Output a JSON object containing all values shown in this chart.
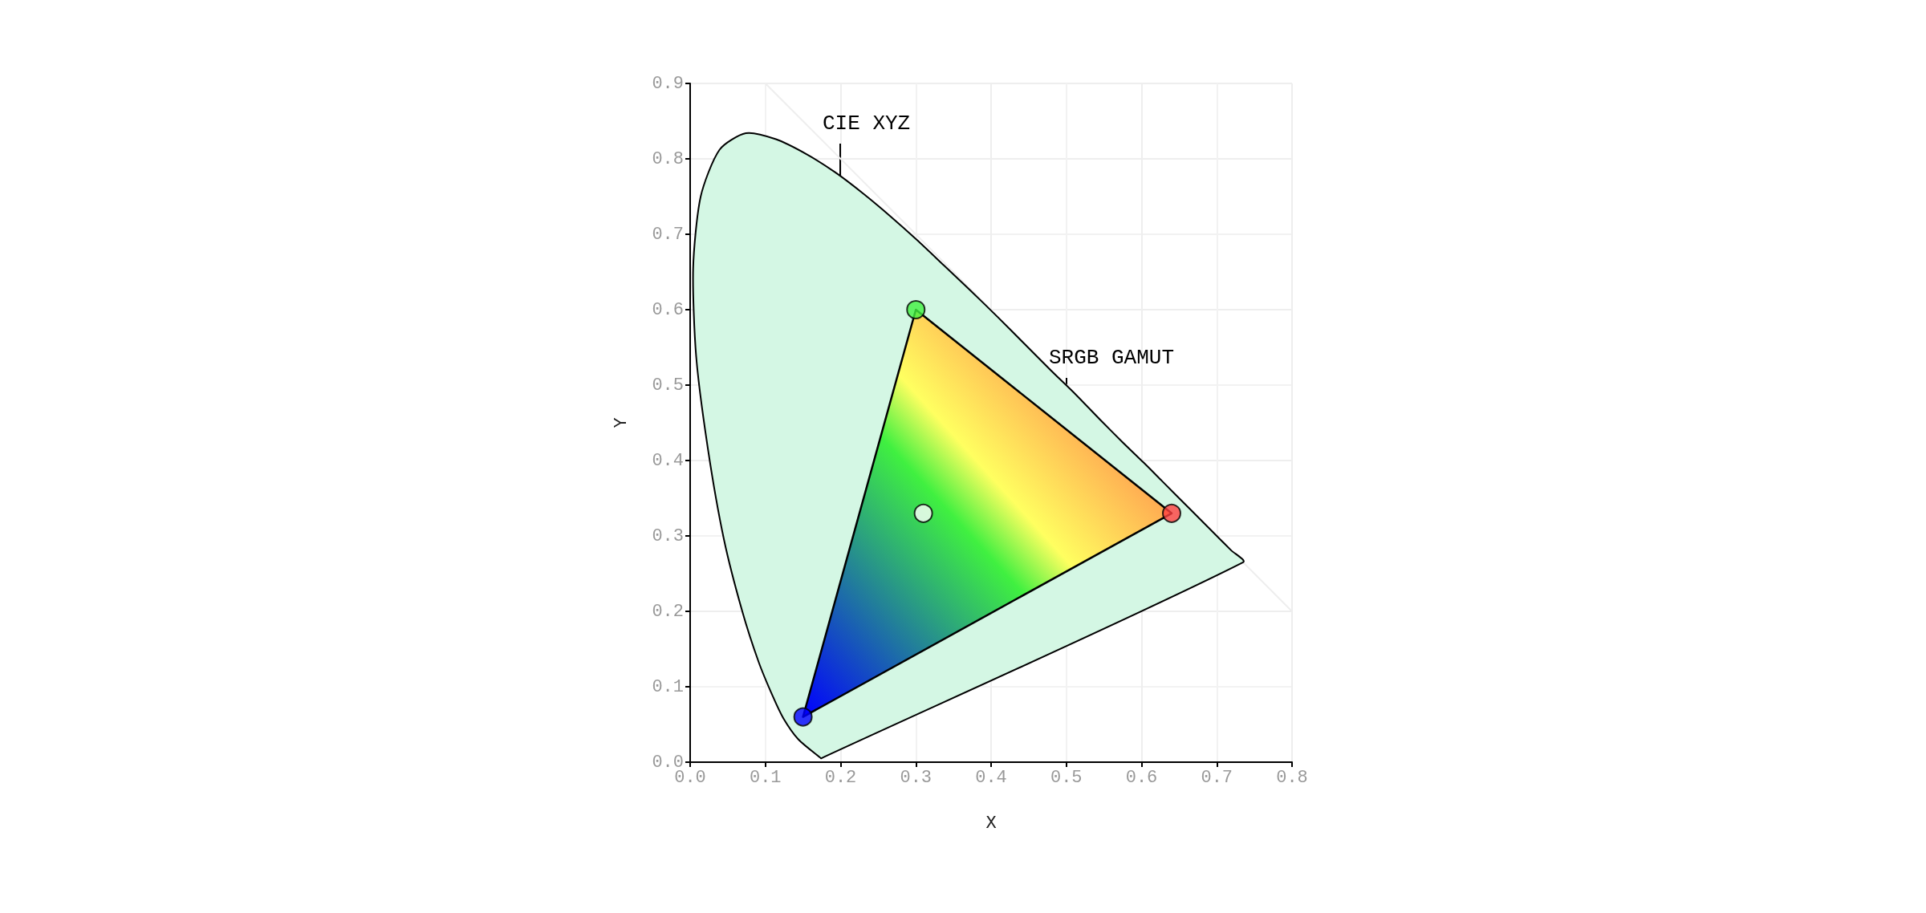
{
  "chart_data": {
    "type": "line",
    "xlabel": "X",
    "ylabel": "Y",
    "xlim": [
      0,
      0.8
    ],
    "xticks": [
      {
        "value": 0,
        "label": "0.0"
      },
      0.1,
      0.2,
      0.3,
      0.4,
      0.5,
      0.6,
      0.7,
      0.8
    ],
    "ylim": [
      0,
      0.9
    ],
    "yticks": [
      {
        "value": 0,
        "label": "0.0"
      },
      0.1,
      0.2,
      0.3,
      0.4,
      0.5,
      0.6,
      0.7,
      0.8,
      0.9
    ],
    "grid": true,
    "annotations": [
      "CIE XYZ",
      "SRGB GAMUT"
    ],
    "series": [
      {
        "color": "#eeeeee",
        "marker": "none",
        "x": [
          0.1,
          0.8
        ],
        "values": [
          0.9,
          0.2
        ]
      },
      {
        "type": "area",
        "color": "#d4f7e4",
        "marker": "none",
        "x": [
          0.174,
          0.144,
          0.124,
          0.11,
          0.091,
          0.069,
          0.045,
          0.024,
          0.008,
          0.004,
          0.014,
          0.039,
          0.074,
          0.114,
          0.155,
          0.193,
          0.23,
          0.266,
          0.302,
          0.337,
          0.373,
          0.409,
          0.444,
          0.479,
          0.513,
          0.545,
          0.575,
          0.603,
          0.627,
          0.666,
          0.692,
          0.719,
          0.735,
          0.174
        ],
        "values": [
          0.005,
          0.03,
          0.058,
          0.087,
          0.133,
          0.201,
          0.295,
          0.413,
          0.538,
          0.655,
          0.75,
          0.812,
          0.834,
          0.826,
          0.806,
          0.782,
          0.754,
          0.724,
          0.692,
          0.659,
          0.625,
          0.59,
          0.555,
          0.52,
          0.487,
          0.454,
          0.424,
          0.397,
          0.373,
          0.334,
          0.308,
          0.281,
          0.265,
          0.005
        ]
      },
      {
        "type": "area",
        "color": "#000000",
        "marker": "none",
        "x": [
          0.64,
          0.3,
          0.15,
          0.64
        ],
        "values": [
          0.33,
          0.6,
          0.06,
          0.33
        ]
      },
      {
        "type": "scatter",
        "marker": "circle",
        "x": [
          0.64,
          0.3,
          0.15,
          0.31
        ],
        "values": [
          0.33,
          0.6,
          0.06,
          0.33
        ],
        "colors": [
          "#ff4040",
          "#40f040",
          "#0000ff",
          "#ffffff"
        ]
      }
    ]
  }
}
